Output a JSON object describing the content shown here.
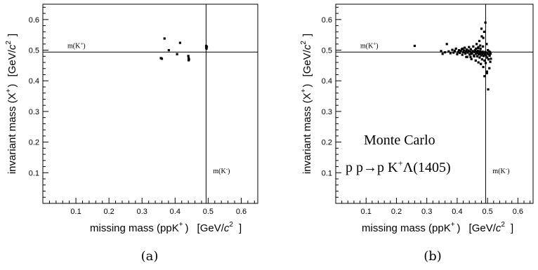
{
  "chart_data": [
    {
      "type": "scatter",
      "caption": "(a)",
      "xlim": [
        0.0,
        0.65
      ],
      "ylim": [
        0.0,
        0.65
      ],
      "xticks": [
        "0.1",
        "0.2",
        "0.3",
        "0.4",
        "0.5",
        "0.6"
      ],
      "yticks": [
        "0.1",
        "0.2",
        "0.3",
        "0.4",
        "0.5",
        "0.6"
      ],
      "xlabel": {
        "main": "missing mass (ppK",
        "sup": "+",
        "close": ")",
        "unit_pre": "[GeV/",
        "unit_c": "c",
        "unit_sup": "2",
        "unit_close": "]"
      },
      "ylabel": {
        "main": "invariant mass (X",
        "sup": "+",
        "close": ")",
        "unit_pre": "[GeV/",
        "unit_c": "c",
        "unit_sup": "2",
        "unit_close": "]"
      },
      "ref_x": 0.4937,
      "ref_y": 0.4937,
      "label_h": {
        "text": "m(K",
        "sup": "+",
        "close": ")"
      },
      "label_v": {
        "text": "m(K",
        "sup": "-",
        "close": ")"
      },
      "annotation": null,
      "points": [
        [
          0.357,
          0.474
        ],
        [
          0.36,
          0.472
        ],
        [
          0.368,
          0.538
        ],
        [
          0.381,
          0.5
        ],
        [
          0.406,
          0.487
        ],
        [
          0.415,
          0.524
        ],
        [
          0.44,
          0.481
        ],
        [
          0.441,
          0.474
        ],
        [
          0.441,
          0.467
        ],
        [
          0.442,
          0.47
        ],
        [
          0.494,
          0.514
        ],
        [
          0.494,
          0.508
        ],
        [
          0.495,
          0.505
        ],
        [
          0.496,
          0.511
        ]
      ]
    },
    {
      "type": "scatter",
      "caption": "(b)",
      "xlim": [
        0.0,
        0.65
      ],
      "ylim": [
        0.0,
        0.65
      ],
      "xticks": [
        "0.1",
        "0.2",
        "0.3",
        "0.4",
        "0.5",
        "0.6"
      ],
      "yticks": [
        "0.1",
        "0.2",
        "0.3",
        "0.4",
        "0.5",
        "0.6"
      ],
      "xlabel": {
        "main": "missing mass (ppK",
        "sup": "+",
        "close": ")",
        "unit_pre": "[GeV/",
        "unit_c": "c",
        "unit_sup": "2",
        "unit_close": "]"
      },
      "ylabel": {
        "main": "invariant mass (X",
        "sup": "+",
        "close": ")",
        "unit_pre": "[GeV/",
        "unit_c": "c",
        "unit_sup": "2",
        "unit_close": "]"
      },
      "ref_x": 0.4937,
      "ref_y": 0.4937,
      "label_h": {
        "text": "m(K",
        "sup": "+",
        "close": ")"
      },
      "label_v": {
        "text": "m(K",
        "sup": "-",
        "close": ")"
      },
      "annotation": {
        "line1": "Monte Carlo",
        "line2_pre": "p p",
        "line2_arrow": "→",
        "line2_mid": "p K",
        "line2_sup": "+",
        "line2_post": "Λ(1405)"
      },
      "points": [
        [
          0.26,
          0.514
        ],
        [
          0.347,
          0.497
        ],
        [
          0.352,
          0.488
        ],
        [
          0.36,
          0.493
        ],
        [
          0.366,
          0.52
        ],
        [
          0.372,
          0.496
        ],
        [
          0.378,
          0.49
        ],
        [
          0.384,
          0.501
        ],
        [
          0.388,
          0.492
        ],
        [
          0.392,
          0.498
        ],
        [
          0.396,
          0.505
        ],
        [
          0.4,
          0.487
        ],
        [
          0.403,
          0.494
        ],
        [
          0.406,
          0.5
        ],
        [
          0.409,
          0.491
        ],
        [
          0.412,
          0.497
        ],
        [
          0.415,
          0.503
        ],
        [
          0.417,
          0.485
        ],
        [
          0.42,
          0.493
        ],
        [
          0.422,
          0.499
        ],
        [
          0.425,
          0.508
        ],
        [
          0.427,
          0.489
        ],
        [
          0.429,
          0.496
        ],
        [
          0.431,
          0.502
        ],
        [
          0.433,
          0.478
        ],
        [
          0.435,
          0.492
        ],
        [
          0.437,
          0.499
        ],
        [
          0.439,
          0.51
        ],
        [
          0.441,
          0.486
        ],
        [
          0.443,
          0.495
        ],
        [
          0.445,
          0.503
        ],
        [
          0.447,
          0.471
        ],
        [
          0.449,
          0.49
        ],
        [
          0.451,
          0.497
        ],
        [
          0.453,
          0.512
        ],
        [
          0.455,
          0.483
        ],
        [
          0.457,
          0.494
        ],
        [
          0.459,
          0.5
        ],
        [
          0.461,
          0.466
        ],
        [
          0.462,
          0.488
        ],
        [
          0.463,
          0.496
        ],
        [
          0.464,
          0.52
        ],
        [
          0.466,
          0.48
        ],
        [
          0.467,
          0.491
        ],
        [
          0.468,
          0.498
        ],
        [
          0.469,
          0.507
        ],
        [
          0.47,
          0.46
        ],
        [
          0.471,
          0.486
        ],
        [
          0.472,
          0.494
        ],
        [
          0.473,
          0.53
        ],
        [
          0.474,
          0.476
        ],
        [
          0.475,
          0.489
        ],
        [
          0.476,
          0.497
        ],
        [
          0.477,
          0.505
        ],
        [
          0.478,
          0.455
        ],
        [
          0.479,
          0.483
        ],
        [
          0.48,
          0.492
        ],
        [
          0.481,
          0.545
        ],
        [
          0.482,
          0.47
        ],
        [
          0.483,
          0.487
        ],
        [
          0.484,
          0.495
        ],
        [
          0.485,
          0.512
        ],
        [
          0.486,
          0.445
        ],
        [
          0.487,
          0.481
        ],
        [
          0.488,
          0.491
        ],
        [
          0.489,
          0.56
        ],
        [
          0.49,
          0.466
        ],
        [
          0.491,
          0.486
        ],
        [
          0.492,
          0.494
        ],
        [
          0.493,
          0.59
        ],
        [
          0.494,
          0.458
        ],
        [
          0.495,
          0.483
        ],
        [
          0.496,
          0.492
        ],
        [
          0.497,
          0.52
        ],
        [
          0.498,
          0.43
        ],
        [
          0.499,
          0.476
        ],
        [
          0.5,
          0.489
        ],
        [
          0.501,
          0.5
        ],
        [
          0.502,
          0.372
        ],
        [
          0.503,
          0.47
        ],
        [
          0.504,
          0.486
        ],
        [
          0.505,
          0.496
        ],
        [
          0.506,
          0.441
        ],
        [
          0.507,
          0.482
        ],
        [
          0.508,
          0.494
        ],
        [
          0.509,
          0.462
        ],
        [
          0.51,
          0.489
        ],
        [
          0.511,
          0.472
        ],
        [
          0.498,
          0.425
        ],
        [
          0.49,
          0.415
        ],
        [
          0.486,
          0.54
        ],
        [
          0.48,
          0.57
        ],
        [
          0.476,
          0.515
        ],
        [
          0.47,
          0.51
        ],
        [
          0.462,
          0.505
        ],
        [
          0.456,
          0.48
        ],
        [
          0.444,
          0.478
        ],
        [
          0.43,
          0.478
        ],
        [
          0.418,
          0.505
        ],
        [
          0.446,
          0.488
        ]
      ]
    }
  ]
}
